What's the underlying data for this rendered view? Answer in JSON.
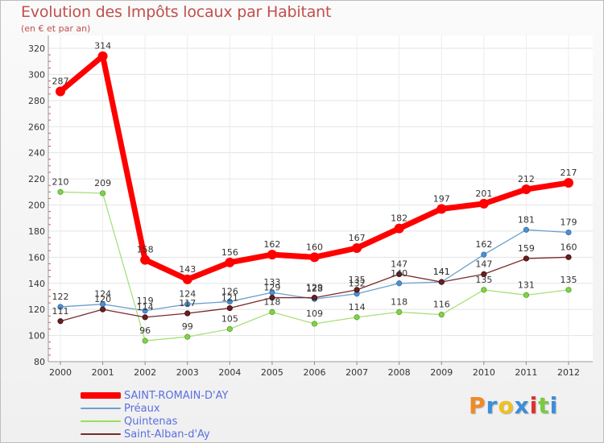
{
  "chart_data": {
    "type": "line",
    "title": "Evolution des Impôts locaux par Habitant",
    "subtitle": "(en € et par an)",
    "xlabel": "",
    "ylabel": "",
    "x": [
      "2000",
      "2001",
      "2002",
      "2003",
      "2004",
      "2005",
      "2006",
      "2007",
      "2008",
      "2009",
      "2010",
      "2011",
      "2012"
    ],
    "ylim": [
      80,
      320
    ],
    "yticks": [
      80,
      100,
      120,
      140,
      160,
      180,
      200,
      220,
      240,
      260,
      280,
      300,
      320
    ],
    "grid": true,
    "legend_position": "bottom-left",
    "series": [
      {
        "name": "SAINT-ROMAIN-D'AY",
        "color": "#ff0000",
        "values": [
          287,
          314,
          158,
          143,
          156,
          162,
          160,
          167,
          182,
          197,
          201,
          212,
          217
        ]
      },
      {
        "name": "Préaux",
        "color": "#6a9fd0",
        "values": [
          122,
          124,
          119,
          124,
          126,
          133,
          128,
          132,
          140,
          141,
          162,
          181,
          179
        ]
      },
      {
        "name": "Quintenas",
        "color": "#99e05a",
        "values": [
          210,
          209,
          96,
          99,
          105,
          118,
          109,
          114,
          118,
          116,
          135,
          131,
          135
        ]
      },
      {
        "name": "Saint-Alban-d'Ay",
        "color": "#7a2a2a",
        "values": [
          111,
          120,
          114,
          117,
          121,
          129,
          129,
          135,
          147,
          141,
          147,
          159,
          160
        ]
      }
    ]
  },
  "logo": {
    "text": "Proxiti",
    "letter_colors": [
      "#f08a24",
      "#3a8fd8",
      "#f0c020",
      "#3a8fd8",
      "#e03030",
      "#7ac943",
      "#3a8fd8"
    ]
  }
}
